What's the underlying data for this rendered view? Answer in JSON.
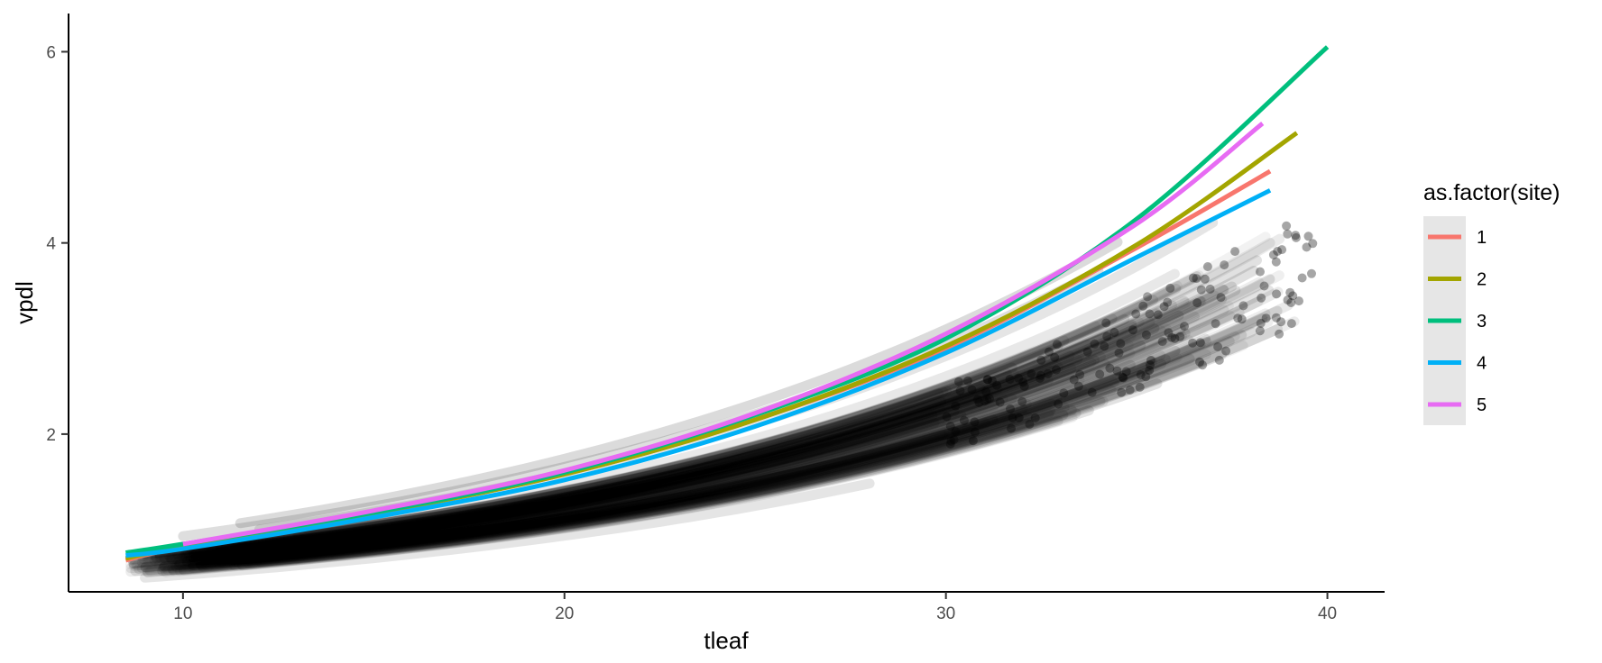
{
  "chart_data": {
    "type": "scatter",
    "title": "",
    "xlabel": "tleaf",
    "ylabel": "vpdl",
    "xlim": [
      7.0,
      41.5
    ],
    "ylim": [
      0.35,
      6.4
    ],
    "x_ticks": [
      10,
      20,
      30,
      40
    ],
    "y_ticks": [
      2,
      4,
      6
    ],
    "grid": false,
    "legend": {
      "title": "as.factor(site)",
      "placement": "right",
      "entries": [
        "1",
        "2",
        "3",
        "4",
        "5"
      ]
    },
    "points_color": "#000000",
    "series": [
      {
        "name": "1",
        "color": "#F8766D",
        "x": [
          8.5,
          10,
          15,
          20,
          25,
          30,
          35,
          38.5
        ],
        "y": [
          0.68,
          0.82,
          1.17,
          1.58,
          2.15,
          2.9,
          3.95,
          4.75
        ]
      },
      {
        "name": "2",
        "color": "#A3A500",
        "x": [
          8.5,
          10,
          15,
          20,
          25,
          30,
          35,
          39.2
        ],
        "y": [
          0.7,
          0.82,
          1.17,
          1.58,
          2.15,
          2.92,
          3.98,
          5.15
        ]
      },
      {
        "name": "3",
        "color": "#00BF7D",
        "x": [
          8.5,
          10,
          15,
          20,
          25,
          30,
          35,
          40
        ],
        "y": [
          0.76,
          0.85,
          1.18,
          1.6,
          2.2,
          3.0,
          4.25,
          6.05
        ]
      },
      {
        "name": "4",
        "color": "#00B0F6",
        "x": [
          8.5,
          10,
          15,
          20,
          25,
          30,
          35,
          38.5
        ],
        "y": [
          0.73,
          0.8,
          1.13,
          1.52,
          2.08,
          2.85,
          3.85,
          4.55
        ]
      },
      {
        "name": "5",
        "color": "#E76BF3",
        "x": [
          10,
          15,
          20,
          25,
          30,
          35,
          38.3
        ],
        "y": [
          0.85,
          1.2,
          1.62,
          2.22,
          3.05,
          4.2,
          5.25
        ]
      }
    ]
  }
}
